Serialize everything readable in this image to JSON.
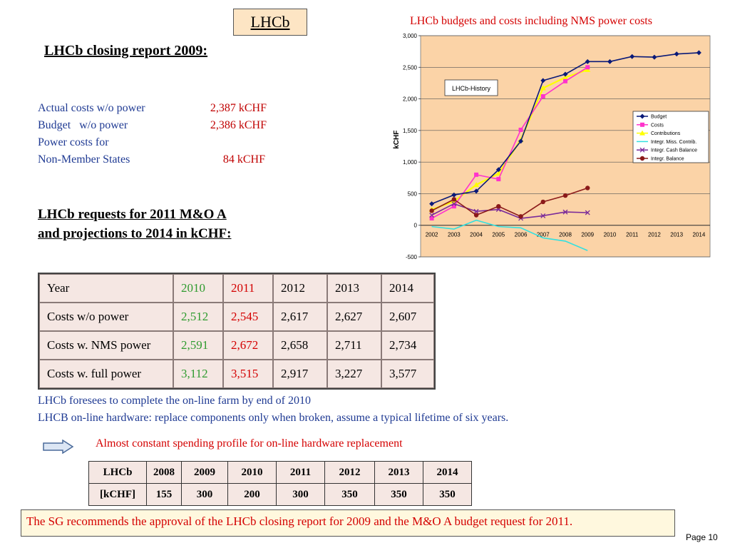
{
  "title": "LHCb",
  "closing": {
    "heading": "LHCb closing report 2009:",
    "rows": [
      {
        "label": "Actual costs w/o power",
        "value": "2,387 kCHF"
      },
      {
        "label": "Budget   w/o power",
        "value": "2,386 kCHF"
      },
      {
        "label": "Power costs for",
        "value": ""
      },
      {
        "label": "Non-Member States",
        "value": "84 kCHF"
      }
    ]
  },
  "requests": {
    "heading_line1": "LHCb requests for 2011 M&O A",
    "heading_line2": "and projections to 2014 in kCHF:"
  },
  "main_table": {
    "header": [
      "Year",
      "2010",
      "2011",
      "2012",
      "2013",
      "2014"
    ],
    "rows": [
      [
        "Costs w/o power",
        "2,512",
        "2,545",
        "2,617",
        "2,627",
        "2,607"
      ],
      [
        "Costs w. NMS power",
        "2,591",
        "2,672",
        "2,658",
        "2,711",
        "2,734"
      ],
      [
        "Costs w. full power",
        "3,112",
        "3,515",
        "2,917",
        "3,227",
        "3,577"
      ]
    ]
  },
  "notes": {
    "line1": "LHCb foresees to complete the on-line farm by end of 2010",
    "line2": "LHCB on-line hardware:  replace components only when broken, assume a typical lifetime of six years.",
    "constant": "Almost constant spending profile for on-line hardware replacement"
  },
  "small_table": {
    "header": [
      "LHCb",
      "2008",
      "2009",
      "2010",
      "2011",
      "2012",
      "2013",
      "2014"
    ],
    "row": [
      "[kCHF]",
      "155",
      "300",
      "200",
      "300",
      "350",
      "350",
      "350"
    ]
  },
  "recommendation": "The SG recommends the approval of the LHCb closing report for 2009 and the M&O A budget request for 2011.",
  "page": "Page 10",
  "colors": {
    "accent_red": "#d40000",
    "text_blue": "#1f3a93",
    "green": "#2f9b2f",
    "plot_bg": "#fbd3a7"
  },
  "chart_data": {
    "type": "line",
    "title": "LHCb budgets and costs including NMS power costs",
    "ylabel": "kCHF",
    "inset_label": "LHCb-History",
    "categories": [
      "2002",
      "2003",
      "2004",
      "2005",
      "2006",
      "2007",
      "2008",
      "2009",
      "2010",
      "2011",
      "2012",
      "2013",
      "2014"
    ],
    "ylim": [
      -500,
      3000
    ],
    "yticks": [
      -500,
      0,
      500,
      1000,
      1500,
      2000,
      2500,
      3000
    ],
    "ytick_labels": [
      "-500",
      "0",
      "500",
      "1,000",
      "1,500",
      "2,000",
      "2,500",
      "3,000"
    ],
    "grid": true,
    "legend_position": "right",
    "series": [
      {
        "name": "Budget",
        "color": "#0a1a78",
        "marker": "diamond",
        "values": [
          340,
          480,
          540,
          880,
          1330,
          2290,
          2390,
          2590,
          2590,
          2670,
          2660,
          2710,
          2730
        ]
      },
      {
        "name": "Costs",
        "color": "#ff33cc",
        "marker": "square",
        "values": [
          110,
          300,
          800,
          730,
          1510,
          2040,
          2280,
          2500,
          null,
          null,
          null,
          null,
          null
        ]
      },
      {
        "name": "Contributions",
        "color": "#ffff00",
        "marker": "triangle",
        "values": [
          250,
          380,
          640,
          820,
          1350,
          2170,
          2340,
          2460,
          null,
          null,
          null,
          null,
          null
        ]
      },
      {
        "name": "Integr. Miss. Contrib.",
        "color": "#33e0e0",
        "marker": "none",
        "values": [
          -20,
          -60,
          80,
          -20,
          -40,
          -200,
          -250,
          -400,
          null,
          null,
          null,
          null,
          null
        ]
      },
      {
        "name": "Integr. Cash Balance",
        "color": "#7a2a9a",
        "marker": "x",
        "values": [
          160,
          340,
          220,
          250,
          110,
          150,
          210,
          200,
          null,
          null,
          null,
          null,
          null
        ]
      },
      {
        "name": "Integr. Balance",
        "color": "#8b1a1a",
        "marker": "circle",
        "values": [
          230,
          410,
          160,
          300,
          140,
          370,
          470,
          590,
          null,
          null,
          null,
          null,
          null
        ]
      }
    ]
  }
}
